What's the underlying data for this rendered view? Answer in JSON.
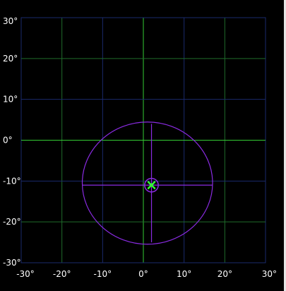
{
  "chart_data": {
    "type": "scatter",
    "xlim": [
      -30,
      30
    ],
    "ylim": [
      -30,
      30
    ],
    "x_ticks": [
      "-30°",
      "-20°",
      "-10°",
      "0°",
      "10°",
      "20°",
      "30°"
    ],
    "y_ticks": [
      "30°",
      "20°",
      "10°",
      "0°",
      "-10°",
      "-20°",
      "-30°"
    ],
    "grid": true,
    "target": {
      "x": 2,
      "y": -11,
      "inner_radius": 1.5
    },
    "ellipse": {
      "cx": 1,
      "cy": -10.5,
      "rx": 16,
      "ry": 15
    },
    "crosshair": {
      "x1": -15,
      "x2": 17,
      "y1": 4,
      "y2": -25
    }
  },
  "colors": {
    "background": "#000000",
    "grid_minor": "#1a2a6c",
    "grid_major": "#1f6b2b",
    "axis_zero": "#33cc33",
    "ellipse": "#8a2be2",
    "marker": "#33ff33",
    "tick_text": "#ffffff"
  },
  "icons": {
    "marker": "x-marker-icon"
  }
}
